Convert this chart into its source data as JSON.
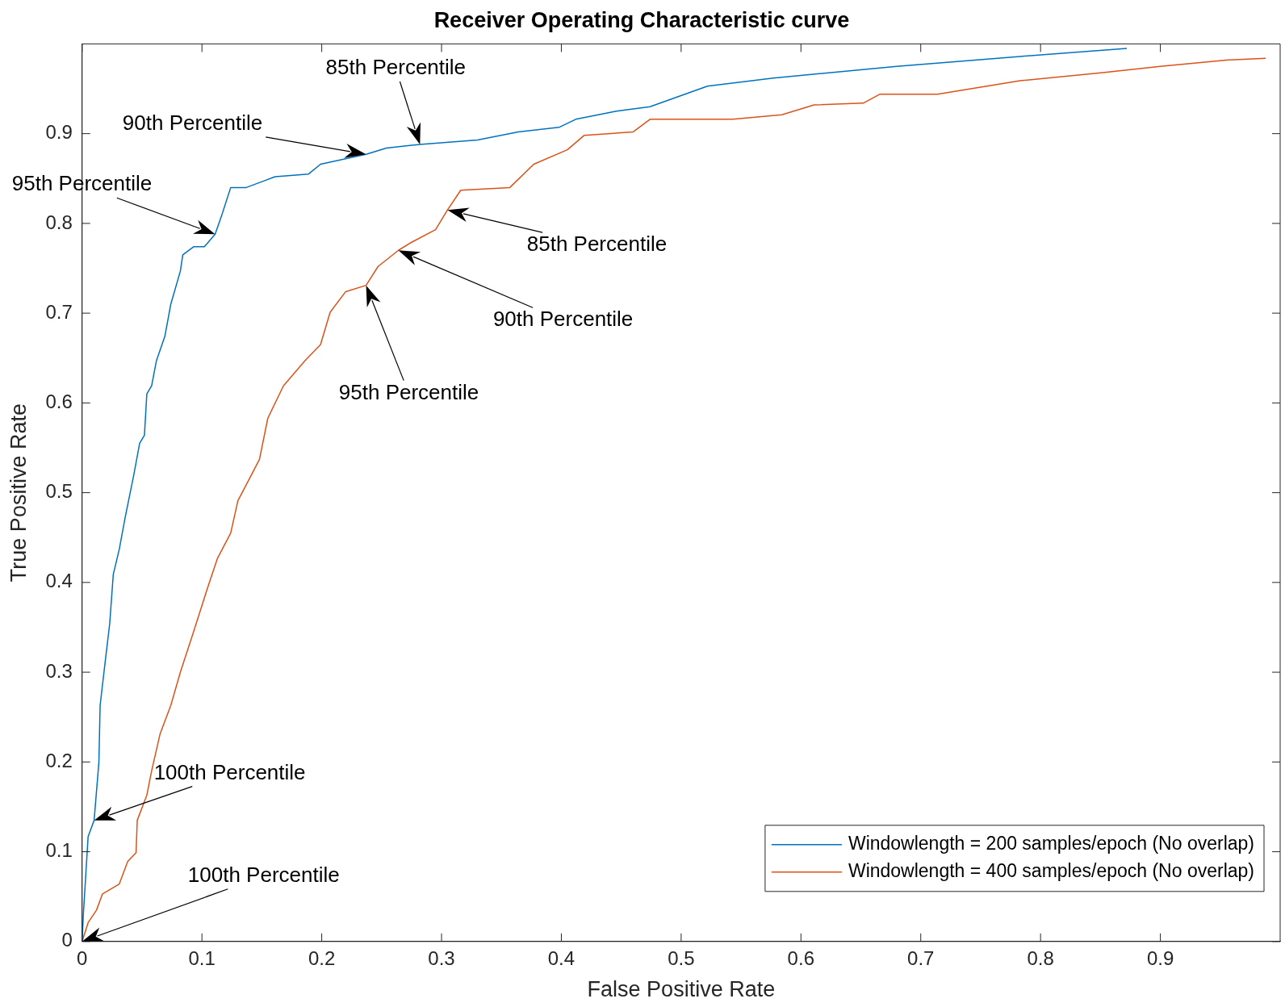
{
  "chart_data": {
    "type": "line",
    "title": "Receiver Operating Characteristic curve",
    "xlabel": "False Positive Rate",
    "ylabel": "True Positive Rate",
    "xlim": [
      0,
      1
    ],
    "ylim": [
      0,
      1
    ],
    "xticks": [
      0,
      0.1,
      0.2,
      0.3,
      0.4,
      0.5,
      0.6,
      0.7,
      0.8,
      0.9
    ],
    "yticks": [
      0,
      0.1,
      0.2,
      0.3,
      0.4,
      0.5,
      0.6,
      0.7,
      0.8,
      0.9
    ],
    "grid": false,
    "legend": "bottom right",
    "marker": "none",
    "line_style": "solid",
    "series": [
      {
        "name": "Windowlength = 200 samples/epoch (No overlap)",
        "color": "#0072bd",
        "x": [
          0,
          0.001,
          0.005,
          0.01,
          0.014,
          0.015,
          0.019,
          0.023,
          0.026,
          0.031,
          0.036,
          0.043,
          0.048,
          0.052,
          0.054,
          0.058,
          0.062,
          0.069,
          0.074,
          0.082,
          0.084,
          0.093,
          0.102,
          0.111,
          0.117,
          0.124,
          0.137,
          0.151,
          0.161,
          0.189,
          0.199,
          0.237,
          0.254,
          0.282,
          0.33,
          0.364,
          0.398,
          0.412,
          0.446,
          0.474,
          0.522,
          0.577,
          0.68,
          0.783,
          0.872
        ],
        "values": [
          0,
          0.03,
          0.117,
          0.135,
          0.2,
          0.263,
          0.309,
          0.354,
          0.409,
          0.437,
          0.473,
          0.519,
          0.555,
          0.564,
          0.61,
          0.619,
          0.647,
          0.674,
          0.71,
          0.747,
          0.765,
          0.774,
          0.774,
          0.788,
          0.811,
          0.84,
          0.84,
          0.847,
          0.852,
          0.855,
          0.866,
          0.877,
          0.884,
          0.888,
          0.893,
          0.902,
          0.907,
          0.916,
          0.925,
          0.93,
          0.953,
          0.962,
          0.975,
          0.986,
          0.995
        ]
      },
      {
        "name": "Windowlength = 400 samples/epoch (No overlap)",
        "color": "#d95319",
        "x": [
          0,
          0.005,
          0.012,
          0.017,
          0.031,
          0.038,
          0.045,
          0.046,
          0.054,
          0.058,
          0.065,
          0.074,
          0.082,
          0.093,
          0.104,
          0.113,
          0.124,
          0.13,
          0.141,
          0.148,
          0.155,
          0.168,
          0.186,
          0.199,
          0.207,
          0.22,
          0.237,
          0.247,
          0.264,
          0.275,
          0.295,
          0.305,
          0.316,
          0.357,
          0.377,
          0.405,
          0.419,
          0.46,
          0.474,
          0.543,
          0.584,
          0.611,
          0.652,
          0.666,
          0.714,
          0.783,
          0.852,
          0.9,
          0.955,
          0.988
        ],
        "values": [
          0,
          0.021,
          0.035,
          0.053,
          0.064,
          0.089,
          0.099,
          0.135,
          0.163,
          0.19,
          0.231,
          0.263,
          0.3,
          0.345,
          0.391,
          0.427,
          0.455,
          0.491,
          0.519,
          0.537,
          0.583,
          0.619,
          0.647,
          0.665,
          0.701,
          0.724,
          0.731,
          0.752,
          0.77,
          0.779,
          0.793,
          0.815,
          0.837,
          0.84,
          0.866,
          0.882,
          0.898,
          0.902,
          0.916,
          0.916,
          0.921,
          0.932,
          0.934,
          0.944,
          0.944,
          0.959,
          0.968,
          0.975,
          0.982,
          0.984
        ]
      }
    ],
    "annotations": [
      "85th Percentile",
      "90th Percentile",
      "95th Percentile",
      "100th Percentile",
      "100th Percentile",
      "85th Percentile",
      "90th Percentile",
      "95th Percentile"
    ]
  }
}
